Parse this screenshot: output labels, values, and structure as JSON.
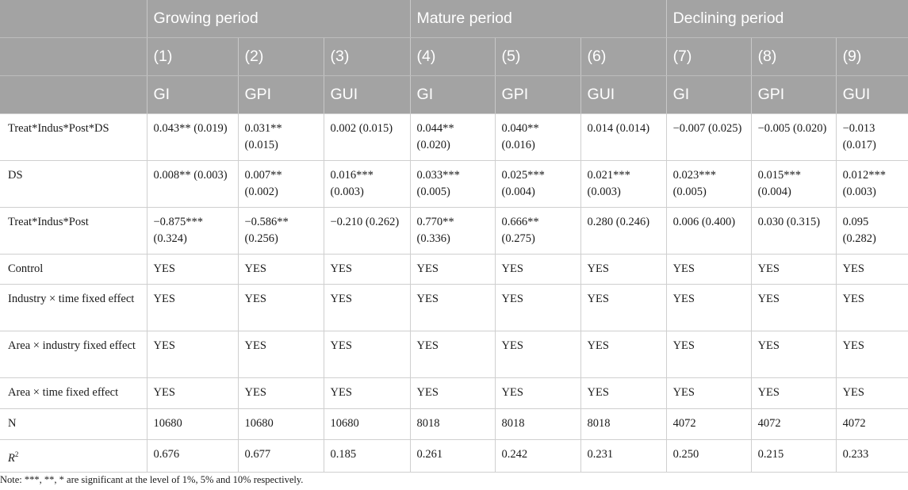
{
  "table": {
    "period_headers": [
      "Growing period",
      "Mature period",
      "Declining period"
    ],
    "column_numbers": [
      "(1)",
      "(2)",
      "(3)",
      "(4)",
      "(5)",
      "(6)",
      "(7)",
      "(8)",
      "(9)"
    ],
    "column_vars": [
      "GI",
      "GPI",
      "GUI",
      "GI",
      "GPI",
      "GUI",
      "GI",
      "GPI",
      "GUI"
    ],
    "rows": [
      {
        "label": "Treat*Indus*Post*DS",
        "cells": [
          "0.043** (0.019)",
          "0.031** (0.015)",
          "0.002 (0.015)",
          "0.044** (0.020)",
          "0.040** (0.016)",
          "0.014 (0.014)",
          "−0.007 (0.025)",
          "−0.005 (0.020)",
          "−0.013 (0.017)"
        ]
      },
      {
        "label": "DS",
        "cells": [
          "0.008** (0.003)",
          "0.007** (0.002)",
          "0.016*** (0.003)",
          "0.033*** (0.005)",
          "0.025*** (0.004)",
          "0.021*** (0.003)",
          "0.023*** (0.005)",
          "0.015*** (0.004)",
          "0.012*** (0.003)"
        ]
      },
      {
        "label": "Treat*Indus*Post",
        "cells": [
          "−0.875*** (0.324)",
          "−0.586** (0.256)",
          "−0.210 (0.262)",
          "0.770** (0.336)",
          "0.666** (0.275)",
          "0.280 (0.246)",
          "0.006 (0.400)",
          "0.030 (0.315)",
          "0.095 (0.282)"
        ]
      },
      {
        "label": "Control",
        "cells": [
          "YES",
          "YES",
          "YES",
          "YES",
          "YES",
          "YES",
          "YES",
          "YES",
          "YES"
        ]
      },
      {
        "label": "Industry × time fixed effect",
        "cells": [
          "YES",
          "YES",
          "YES",
          "YES",
          "YES",
          "YES",
          "YES",
          "YES",
          "YES"
        ]
      },
      {
        "label": "Area × industry fixed effect",
        "cells": [
          "YES",
          "YES",
          "YES",
          "YES",
          "YES",
          "YES",
          "YES",
          "YES",
          "YES"
        ]
      },
      {
        "label": "Area × time fixed effect",
        "cells": [
          "YES",
          "YES",
          "YES",
          "YES",
          "YES",
          "YES",
          "YES",
          "YES",
          "YES"
        ]
      },
      {
        "label": "N",
        "cells": [
          "10680",
          "10680",
          "10680",
          "8018",
          "8018",
          "8018",
          "4072",
          "4072",
          "4072"
        ]
      },
      {
        "label_base": "R",
        "label_sup": "2",
        "cells": [
          "0.676",
          "0.677",
          "0.185",
          "0.261",
          "0.242",
          "0.231",
          "0.250",
          "0.215",
          "0.233"
        ]
      }
    ]
  },
  "note": "Note: ***, **, * are significant at the level of 1%, 5% and 10% respectively."
}
